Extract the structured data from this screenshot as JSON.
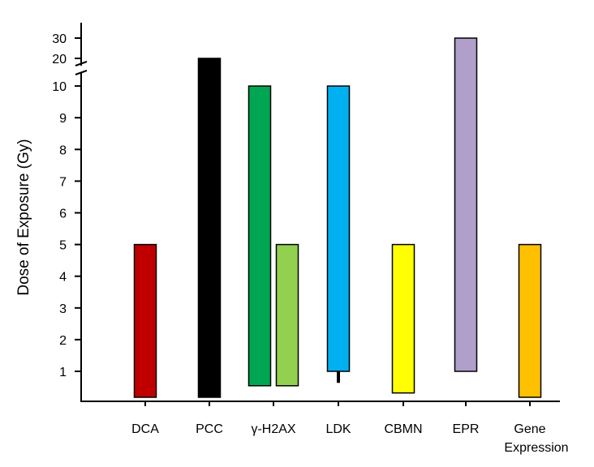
{
  "chart_data": {
    "type": "bar",
    "subtype": "floating-range",
    "ylabel": "Dose of Exposure (Gy)",
    "xlabel": "",
    "y_ticks": [
      1,
      2,
      3,
      4,
      5,
      6,
      7,
      8,
      9,
      10,
      20,
      30
    ],
    "y_axis_break_between": [
      10,
      20
    ],
    "categories": [
      {
        "label_lines": [
          "DCA"
        ]
      },
      {
        "label_lines": [
          "PCC"
        ]
      },
      {
        "label_lines": [
          "γ-H2AX"
        ]
      },
      {
        "label_lines": [
          "LDK"
        ]
      },
      {
        "label_lines": [
          "CBMN"
        ]
      },
      {
        "label_lines": [
          "EPR"
        ]
      },
      {
        "label_lines": [
          "Gene",
          "Expression"
        ]
      }
    ],
    "bars": [
      {
        "category": "DCA",
        "low": 0.1,
        "high": 5,
        "color": "#c00000"
      },
      {
        "category": "PCC",
        "low": 0.1,
        "high": 20,
        "color": "#000000"
      },
      {
        "category": "γ-H2AX",
        "slot": "left",
        "low": 0.5,
        "high": 10,
        "color": "#00a651"
      },
      {
        "category": "γ-H2AX",
        "slot": "right",
        "low": 0.5,
        "high": 5,
        "color": "#92d050"
      },
      {
        "category": "LDK",
        "low": 1,
        "high": 10,
        "color": "#00b0f0",
        "tail_to": 0.6
      },
      {
        "category": "CBMN",
        "low": 0.25,
        "high": 5,
        "color": "#ffff00"
      },
      {
        "category": "EPR",
        "low": 1,
        "high": 30,
        "color": "#b09fca"
      },
      {
        "category": "Gene Expression",
        "low": 0.1,
        "high": 5,
        "color": "#ffc000"
      }
    ],
    "grid": false,
    "legend": "none"
  }
}
